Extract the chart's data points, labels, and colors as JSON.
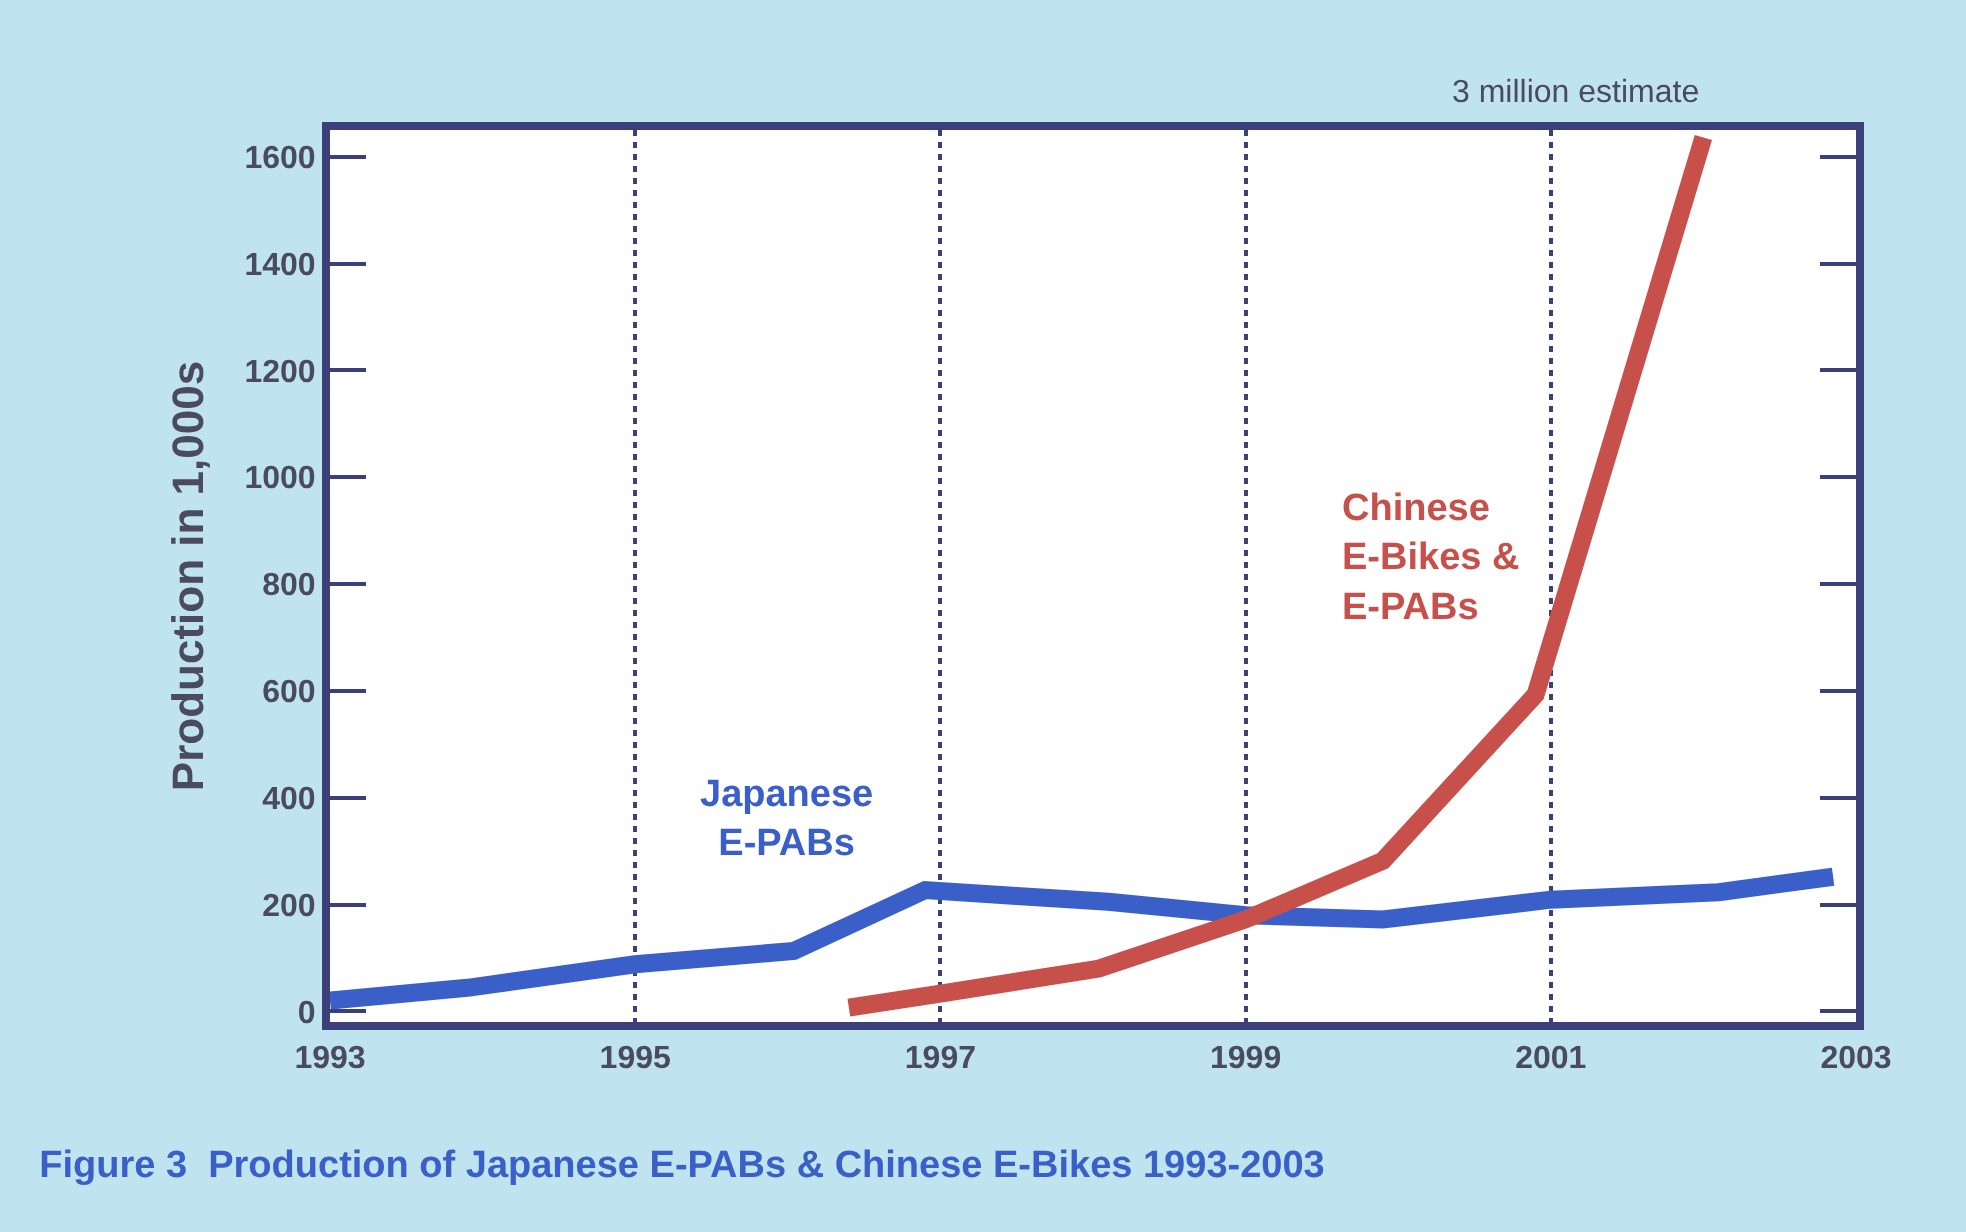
{
  "chart_data": {
    "type": "line",
    "title": "Figure 3  Production of Japanese E-PABs & Chinese E-Bikes 1993-2003",
    "ylabel": "Production in 1,000s",
    "xlim": [
      1993,
      2003
    ],
    "xticks": [
      1993,
      1995,
      1997,
      1999,
      2001,
      2003
    ],
    "ylim": [
      -20,
      1650
    ],
    "yticks": [
      0,
      200,
      400,
      600,
      800,
      1000,
      1200,
      1400,
      1600
    ],
    "grid": "x",
    "legend": false,
    "marker": "none",
    "line_style": "solid",
    "series": [
      {
        "name": "Japanese E-PABs",
        "color": "#3a5fc8",
        "x": [
          1993,
          1993.9,
          1995,
          1996.04,
          1996.9,
          1997.5,
          1998.1,
          1999,
          1999.9,
          2001,
          2002.1,
          2002.85
        ],
        "values": [
          20,
          44,
          88,
          113,
          227,
          216,
          205,
          180,
          172,
          209,
          223,
          252
        ]
      },
      {
        "name": "Chinese E-Bikes & E-PABs",
        "color": "#c8504a",
        "x": [
          1996.4,
          1997,
          1998.04,
          1999,
          1999.9,
          2000.9,
          2002.0
        ],
        "values": [
          7,
          33,
          80,
          172,
          282,
          593,
          1636
        ]
      }
    ],
    "annotations": [
      {
        "text": "3 million estimate",
        "x": 2002.0,
        "y": 1636
      }
    ]
  }
}
